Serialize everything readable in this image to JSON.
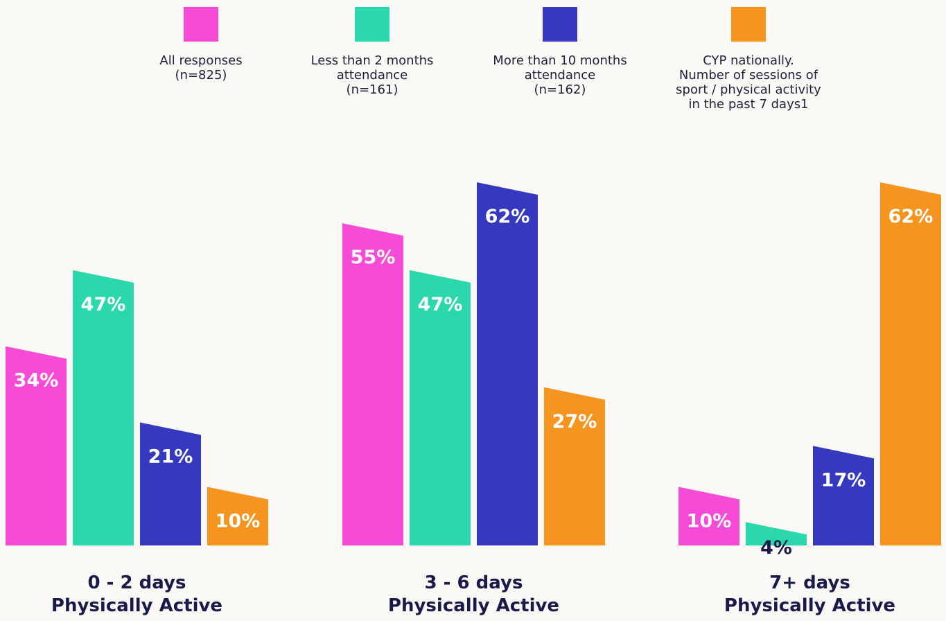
{
  "chart_data": {
    "type": "bar",
    "categories": [
      "0 - 2 days\nPhysically Active",
      "3 - 6 days\nPhysically Active",
      "7+ days\nPhysically Active"
    ],
    "series": [
      {
        "name": "All responses\n(n=825)",
        "color": "#f54bd6",
        "values": [
          34,
          55,
          10
        ],
        "labels": [
          "34%",
          "55%",
          "10%"
        ]
      },
      {
        "name": "Less than 2 months\nattendance\n(n=161)",
        "color": "#2bd8ab",
        "values": [
          47,
          47,
          4
        ],
        "labels": [
          "47%",
          "47%",
          "4%"
        ]
      },
      {
        "name": "More than 10 months\nattendance\n(n=162)",
        "color": "#3439c0",
        "values": [
          21,
          62,
          17
        ],
        "labels": [
          "21%",
          "62%",
          "17%"
        ]
      },
      {
        "name": "CYP nationally.\nNumber of sessions of\nsport / physical activity\nin the past 7 days1",
        "color": "#f5941e",
        "values": [
          10,
          27,
          62
        ],
        "labels": [
          "10%",
          "27%",
          "62%"
        ]
      }
    ],
    "ylim": [
      0,
      62
    ],
    "grid": false,
    "legend": "top",
    "value_label_colors": {
      "inside": "#ffffff",
      "above": "#1a1a4a"
    }
  }
}
